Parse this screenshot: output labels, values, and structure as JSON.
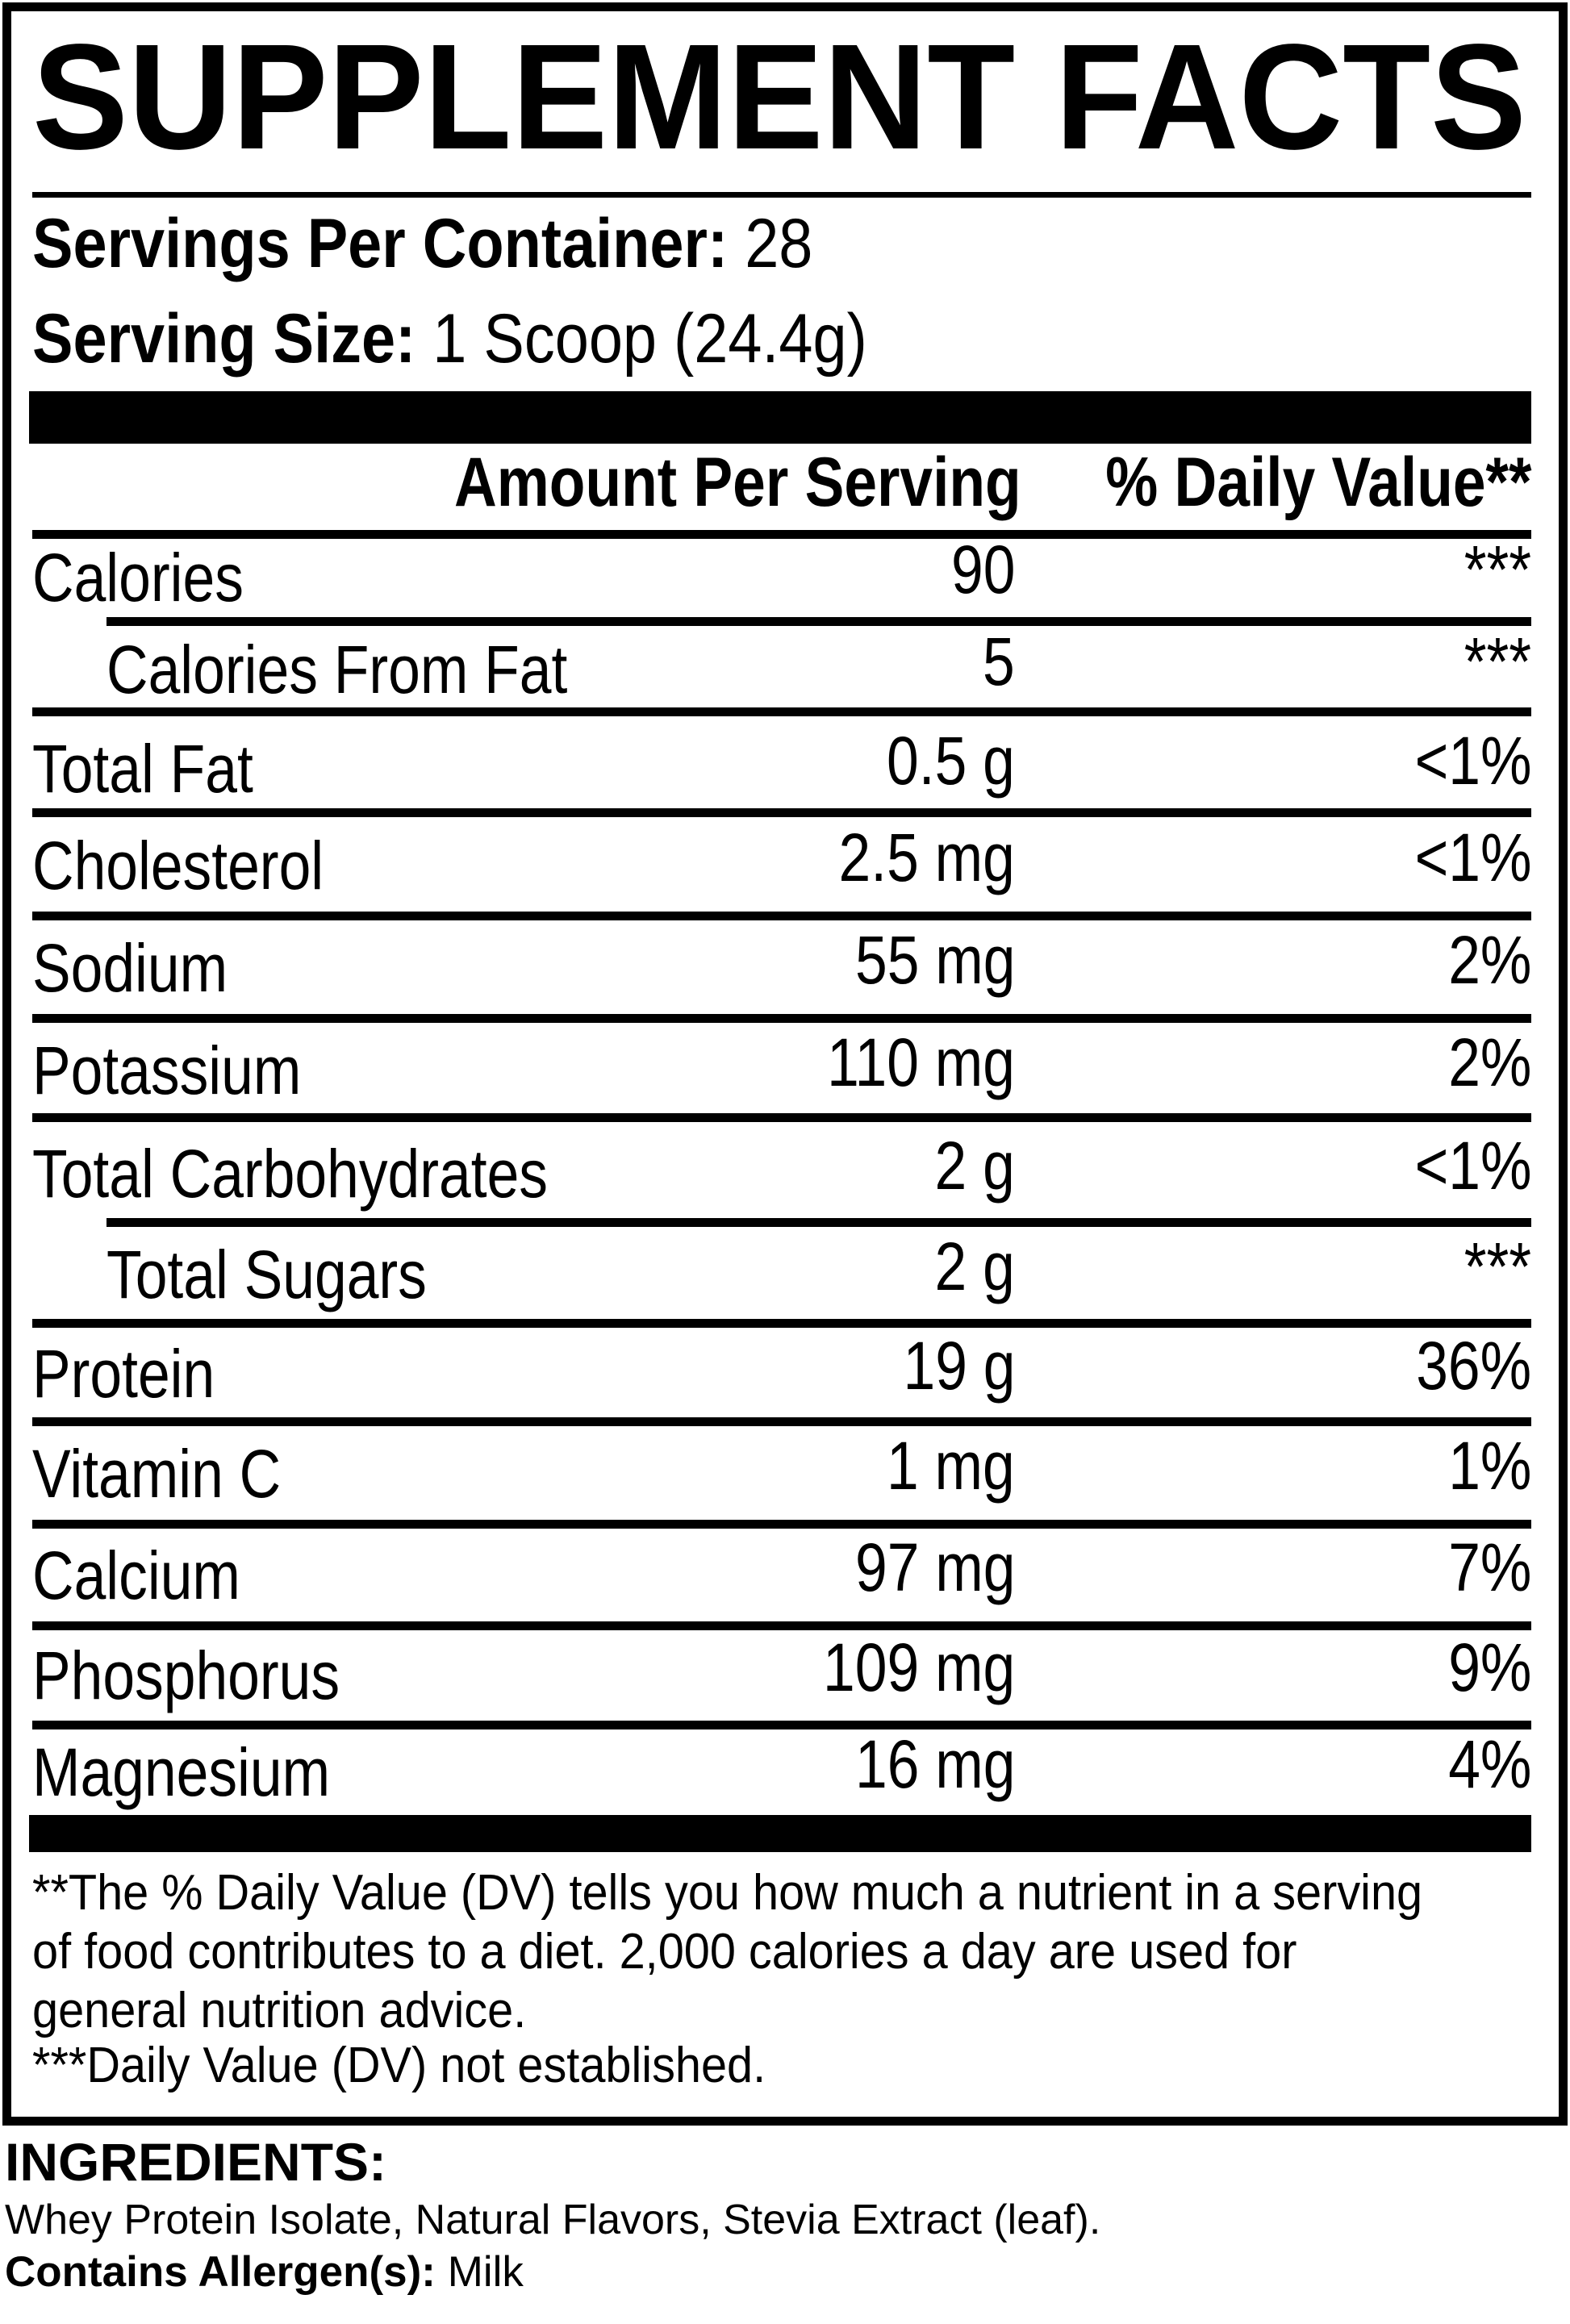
{
  "label": {
    "title": "SUPPLEMENT FACTS",
    "servings_per_container": {
      "label": "Servings Per Container:",
      "value": "28"
    },
    "serving_size": {
      "label": "Serving Size:",
      "value": "1 Scoop (24.4g)"
    },
    "columns": {
      "amount_header": "Amount Per Serving",
      "daily_value_header": "% Daily Value**"
    },
    "rows": [
      {
        "name": "Calories",
        "amount": "90",
        "dv": "***",
        "indent": false
      },
      {
        "name": "Calories From Fat",
        "amount": "5",
        "dv": "***",
        "indent": true
      },
      {
        "name": "Total Fat",
        "amount": "0.5 g",
        "dv": "<1%",
        "indent": false
      },
      {
        "name": "Cholesterol",
        "amount": "2.5 mg",
        "dv": "<1%",
        "indent": false
      },
      {
        "name": "Sodium",
        "amount": "55 mg",
        "dv": "2%",
        "indent": false
      },
      {
        "name": "Potassium",
        "amount": "110 mg",
        "dv": "2%",
        "indent": false
      },
      {
        "name": "Total Carbohydrates",
        "amount": "2 g",
        "dv": "<1%",
        "indent": false
      },
      {
        "name": "Total Sugars",
        "amount": "2 g",
        "dv": "***",
        "indent": true
      },
      {
        "name": "Protein",
        "amount": "19 g",
        "dv": "36%",
        "indent": false
      },
      {
        "name": "Vitamin C",
        "amount": "1 mg",
        "dv": "1%",
        "indent": false
      },
      {
        "name": "Calcium",
        "amount": "97 mg",
        "dv": "7%",
        "indent": false
      },
      {
        "name": "Phosphorus",
        "amount": "109 mg",
        "dv": "9%",
        "indent": false
      },
      {
        "name": "Magnesium",
        "amount": "16 mg",
        "dv": "4%",
        "indent": false
      }
    ],
    "footnotes": {
      "daily_value": "**The % Daily Value (DV) tells you how much a nutrient in a serving of food contributes to a diet. 2,000 calories a day are used for general nutrition advice.",
      "not_established": "***Daily Value (DV) not established."
    }
  },
  "ingredients": {
    "heading": "INGREDIENTS:",
    "list": "Whey Protein Isolate, Natural Flavors, Stevia Extract (leaf).",
    "allergen_label": "Contains Allergen(s):",
    "allergen_value": "Milk"
  },
  "colors": {
    "ink": "#000000",
    "paper": "#ffffff"
  }
}
